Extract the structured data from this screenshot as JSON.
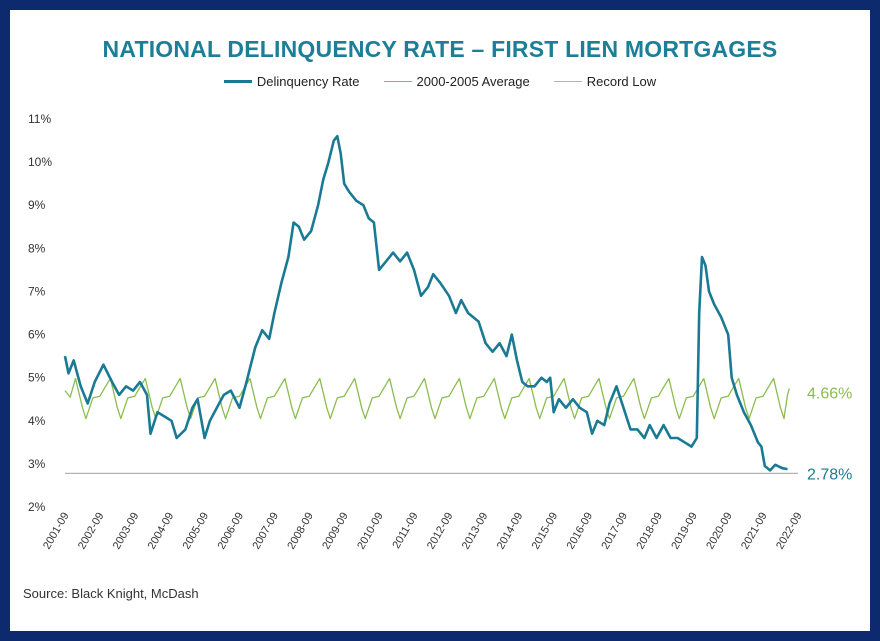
{
  "chart_data": {
    "type": "line",
    "title": "NATIONAL DELINQUENCY RATE – FIRST LIEN MORTGAGES",
    "xlabel": "",
    "ylabel": "",
    "ylim": [
      2,
      11
    ],
    "yticks": [
      "2%",
      "3%",
      "4%",
      "5%",
      "6%",
      "7%",
      "8%",
      "9%",
      "10%",
      "11%"
    ],
    "xticks": [
      "2001-09",
      "2002-09",
      "2003-09",
      "2004-09",
      "2005-09",
      "2006-09",
      "2007-09",
      "2008-09",
      "2009-09",
      "2010-09",
      "2011-09",
      "2012-09",
      "2013-09",
      "2014-09",
      "2015-09",
      "2016-09",
      "2017-09",
      "2018-09",
      "2019-09",
      "2020-09",
      "2021-09",
      "2022-09"
    ],
    "grid": false,
    "legend_position": "top-center",
    "series": [
      {
        "name": "Delinquency Rate",
        "color": "#1b7a93",
        "points": [
          [
            2001.75,
            5.5
          ],
          [
            2001.85,
            5.1
          ],
          [
            2002.0,
            5.4
          ],
          [
            2002.2,
            4.8
          ],
          [
            2002.4,
            4.4
          ],
          [
            2002.6,
            4.9
          ],
          [
            2002.85,
            5.3
          ],
          [
            2003.1,
            4.9
          ],
          [
            2003.3,
            4.6
          ],
          [
            2003.5,
            4.8
          ],
          [
            2003.7,
            4.7
          ],
          [
            2003.9,
            4.9
          ],
          [
            2004.1,
            4.6
          ],
          [
            2004.2,
            3.7
          ],
          [
            2004.4,
            4.2
          ],
          [
            2004.6,
            4.1
          ],
          [
            2004.8,
            4.0
          ],
          [
            2004.95,
            3.6
          ],
          [
            2005.2,
            3.8
          ],
          [
            2005.4,
            4.3
          ],
          [
            2005.55,
            4.5
          ],
          [
            2005.75,
            3.6
          ],
          [
            2005.9,
            4.0
          ],
          [
            2006.1,
            4.3
          ],
          [
            2006.3,
            4.6
          ],
          [
            2006.5,
            4.7
          ],
          [
            2006.75,
            4.3
          ],
          [
            2006.95,
            4.9
          ],
          [
            2007.2,
            5.7
          ],
          [
            2007.4,
            6.1
          ],
          [
            2007.6,
            5.9
          ],
          [
            2007.75,
            6.5
          ],
          [
            2007.95,
            7.2
          ],
          [
            2008.15,
            7.8
          ],
          [
            2008.3,
            8.6
          ],
          [
            2008.45,
            8.5
          ],
          [
            2008.6,
            8.2
          ],
          [
            2008.8,
            8.4
          ],
          [
            2009.0,
            9.0
          ],
          [
            2009.15,
            9.6
          ],
          [
            2009.3,
            10.0
          ],
          [
            2009.45,
            10.5
          ],
          [
            2009.55,
            10.6
          ],
          [
            2009.65,
            10.2
          ],
          [
            2009.75,
            9.5
          ],
          [
            2009.9,
            9.3
          ],
          [
            2010.1,
            9.1
          ],
          [
            2010.3,
            9.0
          ],
          [
            2010.45,
            8.7
          ],
          [
            2010.6,
            8.6
          ],
          [
            2010.75,
            7.5
          ],
          [
            2010.95,
            7.7
          ],
          [
            2011.15,
            7.9
          ],
          [
            2011.35,
            7.7
          ],
          [
            2011.55,
            7.9
          ],
          [
            2011.75,
            7.5
          ],
          [
            2011.95,
            6.9
          ],
          [
            2012.15,
            7.1
          ],
          [
            2012.3,
            7.4
          ],
          [
            2012.5,
            7.2
          ],
          [
            2012.75,
            6.9
          ],
          [
            2012.95,
            6.5
          ],
          [
            2013.1,
            6.8
          ],
          [
            2013.3,
            6.5
          ],
          [
            2013.6,
            6.3
          ],
          [
            2013.8,
            5.8
          ],
          [
            2014.0,
            5.6
          ],
          [
            2014.2,
            5.8
          ],
          [
            2014.4,
            5.5
          ],
          [
            2014.55,
            6.0
          ],
          [
            2014.7,
            5.4
          ],
          [
            2014.85,
            4.9
          ],
          [
            2015.0,
            4.8
          ],
          [
            2015.2,
            4.8
          ],
          [
            2015.4,
            5.0
          ],
          [
            2015.55,
            4.9
          ],
          [
            2015.65,
            5.0
          ],
          [
            2015.75,
            4.2
          ],
          [
            2015.9,
            4.5
          ],
          [
            2016.1,
            4.3
          ],
          [
            2016.3,
            4.5
          ],
          [
            2016.5,
            4.3
          ],
          [
            2016.7,
            4.2
          ],
          [
            2016.85,
            3.7
          ],
          [
            2017.0,
            4.0
          ],
          [
            2017.2,
            3.9
          ],
          [
            2017.35,
            4.4
          ],
          [
            2017.55,
            4.8
          ],
          [
            2017.75,
            4.3
          ],
          [
            2017.95,
            3.8
          ],
          [
            2018.15,
            3.8
          ],
          [
            2018.35,
            3.6
          ],
          [
            2018.5,
            3.9
          ],
          [
            2018.7,
            3.6
          ],
          [
            2018.9,
            3.9
          ],
          [
            2019.1,
            3.6
          ],
          [
            2019.3,
            3.6
          ],
          [
            2019.5,
            3.5
          ],
          [
            2019.7,
            3.4
          ],
          [
            2019.85,
            3.6
          ],
          [
            2019.92,
            6.5
          ],
          [
            2020.0,
            7.8
          ],
          [
            2020.1,
            7.6
          ],
          [
            2020.2,
            7.0
          ],
          [
            2020.35,
            6.7
          ],
          [
            2020.55,
            6.4
          ],
          [
            2020.75,
            6.0
          ],
          [
            2020.85,
            5.0
          ],
          [
            2021.0,
            4.6
          ],
          [
            2021.2,
            4.2
          ],
          [
            2021.4,
            3.9
          ],
          [
            2021.6,
            3.5
          ],
          [
            2021.7,
            3.4
          ],
          [
            2021.8,
            2.95
          ],
          [
            2021.95,
            2.85
          ],
          [
            2022.1,
            2.98
          ],
          [
            2022.3,
            2.9
          ],
          [
            2022.45,
            2.88
          ]
        ]
      },
      {
        "name": "2000-2005 Average",
        "color": "#8bbd4d",
        "points": [
          [
            2001.75,
            4.7
          ],
          [
            2001.9,
            4.55
          ],
          [
            2002.05,
            4.98
          ],
          [
            2002.25,
            4.3
          ],
          [
            2002.35,
            4.05
          ],
          [
            2002.55,
            4.53
          ],
          [
            2002.75,
            4.57
          ],
          [
            2002.9,
            4.78
          ],
          [
            2003.05,
            4.98
          ],
          [
            2003.25,
            4.3
          ],
          [
            2003.35,
            4.05
          ],
          [
            2003.55,
            4.53
          ],
          [
            2003.75,
            4.57
          ],
          [
            2003.9,
            4.78
          ],
          [
            2004.05,
            4.98
          ],
          [
            2004.25,
            4.3
          ],
          [
            2004.35,
            4.05
          ],
          [
            2004.55,
            4.53
          ],
          [
            2004.75,
            4.57
          ],
          [
            2004.9,
            4.78
          ],
          [
            2005.05,
            4.98
          ],
          [
            2005.25,
            4.3
          ],
          [
            2005.35,
            4.05
          ],
          [
            2005.55,
            4.53
          ],
          [
            2005.75,
            4.57
          ],
          [
            2005.9,
            4.78
          ],
          [
            2006.05,
            4.98
          ],
          [
            2006.25,
            4.3
          ],
          [
            2006.35,
            4.05
          ],
          [
            2006.55,
            4.53
          ],
          [
            2006.75,
            4.57
          ],
          [
            2006.9,
            4.78
          ],
          [
            2007.05,
            4.98
          ],
          [
            2007.25,
            4.3
          ],
          [
            2007.35,
            4.05
          ],
          [
            2007.55,
            4.53
          ],
          [
            2007.75,
            4.57
          ],
          [
            2007.9,
            4.78
          ],
          [
            2008.05,
            4.98
          ],
          [
            2008.25,
            4.3
          ],
          [
            2008.35,
            4.05
          ],
          [
            2008.55,
            4.53
          ],
          [
            2008.75,
            4.57
          ],
          [
            2008.9,
            4.78
          ],
          [
            2009.05,
            4.98
          ],
          [
            2009.25,
            4.3
          ],
          [
            2009.35,
            4.05
          ],
          [
            2009.55,
            4.53
          ],
          [
            2009.75,
            4.57
          ],
          [
            2009.9,
            4.78
          ],
          [
            2010.05,
            4.98
          ],
          [
            2010.25,
            4.3
          ],
          [
            2010.35,
            4.05
          ],
          [
            2010.55,
            4.53
          ],
          [
            2010.75,
            4.57
          ],
          [
            2010.9,
            4.78
          ],
          [
            2011.05,
            4.98
          ],
          [
            2011.25,
            4.3
          ],
          [
            2011.35,
            4.05
          ],
          [
            2011.55,
            4.53
          ],
          [
            2011.75,
            4.57
          ],
          [
            2011.9,
            4.78
          ],
          [
            2012.05,
            4.98
          ],
          [
            2012.25,
            4.3
          ],
          [
            2012.35,
            4.05
          ],
          [
            2012.55,
            4.53
          ],
          [
            2012.75,
            4.57
          ],
          [
            2012.9,
            4.78
          ],
          [
            2013.05,
            4.98
          ],
          [
            2013.25,
            4.3
          ],
          [
            2013.35,
            4.05
          ],
          [
            2013.55,
            4.53
          ],
          [
            2013.75,
            4.57
          ],
          [
            2013.9,
            4.78
          ],
          [
            2014.05,
            4.98
          ],
          [
            2014.25,
            4.3
          ],
          [
            2014.35,
            4.05
          ],
          [
            2014.55,
            4.53
          ],
          [
            2014.75,
            4.57
          ],
          [
            2014.9,
            4.78
          ],
          [
            2015.05,
            4.98
          ],
          [
            2015.25,
            4.3
          ],
          [
            2015.35,
            4.05
          ],
          [
            2015.55,
            4.53
          ],
          [
            2015.75,
            4.57
          ],
          [
            2015.9,
            4.78
          ],
          [
            2016.05,
            4.98
          ],
          [
            2016.25,
            4.3
          ],
          [
            2016.35,
            4.05
          ],
          [
            2016.55,
            4.53
          ],
          [
            2016.75,
            4.57
          ],
          [
            2016.9,
            4.78
          ],
          [
            2017.05,
            4.98
          ],
          [
            2017.25,
            4.3
          ],
          [
            2017.35,
            4.05
          ],
          [
            2017.55,
            4.53
          ],
          [
            2017.75,
            4.57
          ],
          [
            2017.9,
            4.78
          ],
          [
            2018.05,
            4.98
          ],
          [
            2018.25,
            4.3
          ],
          [
            2018.35,
            4.05
          ],
          [
            2018.55,
            4.53
          ],
          [
            2018.75,
            4.57
          ],
          [
            2018.9,
            4.78
          ],
          [
            2019.05,
            4.98
          ],
          [
            2019.25,
            4.3
          ],
          [
            2019.35,
            4.05
          ],
          [
            2019.55,
            4.53
          ],
          [
            2019.75,
            4.57
          ],
          [
            2019.9,
            4.78
          ],
          [
            2020.05,
            4.98
          ],
          [
            2020.25,
            4.3
          ],
          [
            2020.35,
            4.05
          ],
          [
            2020.55,
            4.53
          ],
          [
            2020.75,
            4.57
          ],
          [
            2020.9,
            4.78
          ],
          [
            2021.05,
            4.98
          ],
          [
            2021.25,
            4.3
          ],
          [
            2021.35,
            4.05
          ],
          [
            2021.55,
            4.53
          ],
          [
            2021.75,
            4.57
          ],
          [
            2021.9,
            4.78
          ],
          [
            2022.05,
            4.98
          ],
          [
            2022.25,
            4.3
          ],
          [
            2022.35,
            4.05
          ],
          [
            2022.45,
            4.6
          ],
          [
            2022.5,
            4.75
          ]
        ]
      },
      {
        "name": "Record Low",
        "color": "#b3b3b3",
        "points": [
          [
            2001.75,
            2.78
          ],
          [
            2022.75,
            2.78
          ]
        ]
      }
    ],
    "annotations": [
      {
        "text": "4.66%",
        "y": 4.66,
        "color": "#8bbd4d"
      },
      {
        "text": "2.78%",
        "y": 2.78,
        "color": "#1b7a93"
      }
    ],
    "source": "Source: Black Knight, McDash"
  }
}
